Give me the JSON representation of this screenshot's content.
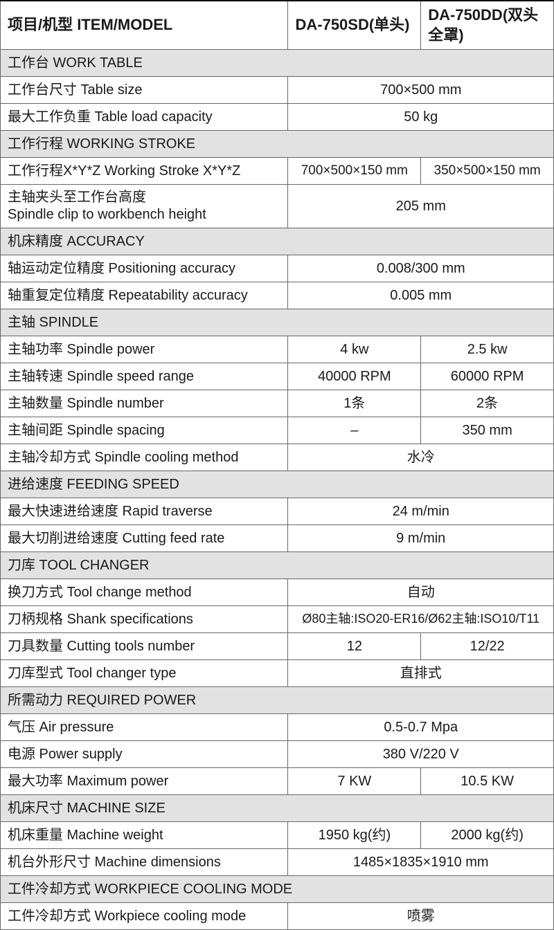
{
  "colors": {
    "border": "#666666",
    "section_bg": "#e2e2e2",
    "text": "#1a1a1a",
    "header_border_top": "#000000"
  },
  "header": {
    "item_label": "项目/机型 ITEM/MODEL",
    "model1": "DA-750SD(单头)",
    "model2": "DA-750DD(双头全罩)"
  },
  "sections": {
    "work_table": "工作台 WORK TABLE",
    "working_stroke": "工作行程 WORKING STROKE",
    "accuracy": "机床精度 ACCURACY",
    "spindle": "主轴 SPINDLE",
    "feeding": "进给速度 FEEDING SPEED",
    "tool_changer": "刀库 TOOL CHANGER",
    "power": "所需动力 REQUIRED POWER",
    "machine_size": "机床尺寸 MACHINE SIZE",
    "cooling": "工件冷却方式 WORKPIECE COOLING MODE"
  },
  "rows": {
    "table_size": {
      "label": "工作台尺寸 Table size",
      "v": "700×500 mm"
    },
    "table_load": {
      "label": "最大工作负重 Table load capacity",
      "v": "50 kg"
    },
    "stroke_xyz": {
      "label": "工作行程X*Y*Z  Working Stroke X*Y*Z",
      "v1": "700×500×150 mm",
      "v2": "350×500×150 mm"
    },
    "spindle_clip": {
      "label_cn": "主轴夹头至工作台高度",
      "label_en": "Spindle clip to workbench height",
      "v": "205 mm"
    },
    "positioning": {
      "label": "轴运动定位精度 Positioning accuracy",
      "v": "0.008/300 mm"
    },
    "repeatability": {
      "label": "轴重复定位精度 Repeatability accuracy",
      "v": "0.005 mm"
    },
    "spindle_power": {
      "label": "主轴功率 Spindle power",
      "v1": "4 kw",
      "v2": "2.5 kw"
    },
    "spindle_speed": {
      "label": "主轴转速 Spindle speed range",
      "v1": "40000 RPM",
      "v2": "60000 RPM"
    },
    "spindle_number": {
      "label": "主轴数量 Spindle number",
      "v1": "1条",
      "v2": "2条"
    },
    "spindle_spacing": {
      "label": "主轴间距 Spindle spacing",
      "v1": "–",
      "v2": "350 mm"
    },
    "spindle_cooling": {
      "label": "主轴冷却方式 Spindle cooling method",
      "v": "水冷"
    },
    "rapid": {
      "label": "最大快速进给速度 Rapid traverse",
      "v": "24 m/min"
    },
    "cutting_feed": {
      "label": "最大切削进给速度 Cutting feed rate",
      "v": "9 m/min"
    },
    "tool_change": {
      "label": "换刀方式 Tool change method",
      "v": "自动"
    },
    "shank": {
      "label": "刀柄规格 Shank specifications",
      "v": "Ø80主轴:ISO20-ER16/Ø62主轴:ISO10/T11"
    },
    "tools_num": {
      "label": "刀具数量 Cutting tools number",
      "v1": "12",
      "v2": "12/22"
    },
    "changer_type": {
      "label": "刀库型式 Tool changer type",
      "v": "直排式"
    },
    "air": {
      "label": "气压 Air pressure",
      "v": "0.5-0.7 Mpa"
    },
    "power_supply": {
      "label": "电源 Power supply",
      "v": "380 V/220 V"
    },
    "max_power": {
      "label": "最大功率 Maximum power",
      "v1": "7 KW",
      "v2": "10.5 KW"
    },
    "weight": {
      "label": "机床重量 Machine weight",
      "v1": "1950 kg(约)",
      "v2": "2000 kg(约)"
    },
    "dimensions": {
      "label": "机台外形尺寸 Machine dimensions",
      "v": "1485×1835×1910 mm"
    },
    "wp_cooling": {
      "label": "工件冷却方式 Workpiece cooling mode",
      "v": "喷雾"
    }
  }
}
